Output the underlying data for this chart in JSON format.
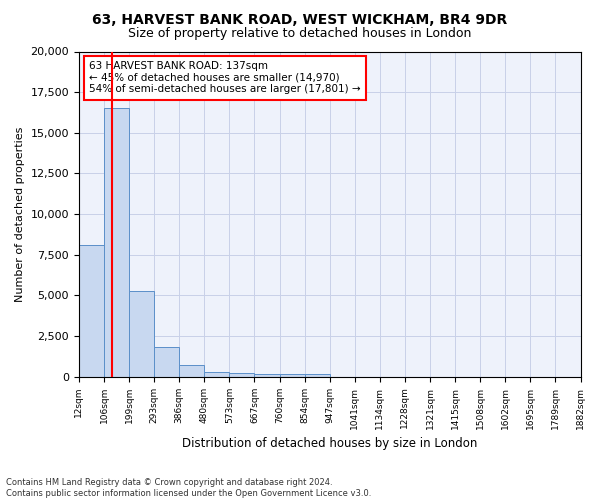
{
  "title1": "63, HARVEST BANK ROAD, WEST WICKHAM, BR4 9DR",
  "title2": "Size of property relative to detached houses in London",
  "xlabel": "Distribution of detached houses by size in London",
  "ylabel": "Number of detached properties",
  "bin_labels": [
    "12sqm",
    "106sqm",
    "199sqm",
    "293sqm",
    "386sqm",
    "480sqm",
    "573sqm",
    "667sqm",
    "760sqm",
    "854sqm",
    "947sqm",
    "1041sqm",
    "1134sqm",
    "1228sqm",
    "1321sqm",
    "1415sqm",
    "1508sqm",
    "1602sqm",
    "1695sqm",
    "1789sqm",
    "1882sqm"
  ],
  "bar_heights": [
    8100,
    16500,
    5300,
    1850,
    700,
    320,
    220,
    190,
    180,
    170,
    0,
    0,
    0,
    0,
    0,
    0,
    0,
    0,
    0,
    0
  ],
  "bar_color": "#c8d8f0",
  "bar_edge_color": "#5b8fc9",
  "red_line_x": 1.37,
  "annotation_text": "63 HARVEST BANK ROAD: 137sqm\n← 45% of detached houses are smaller (14,970)\n54% of semi-detached houses are larger (17,801) →",
  "annotation_box_color": "white",
  "annotation_box_edge": "red",
  "footer": "Contains HM Land Registry data © Crown copyright and database right 2024.\nContains public sector information licensed under the Open Government Licence v3.0.",
  "ylim": [
    0,
    20000
  ],
  "background_color": "#eef2fb",
  "grid_color": "#c8d0e8"
}
